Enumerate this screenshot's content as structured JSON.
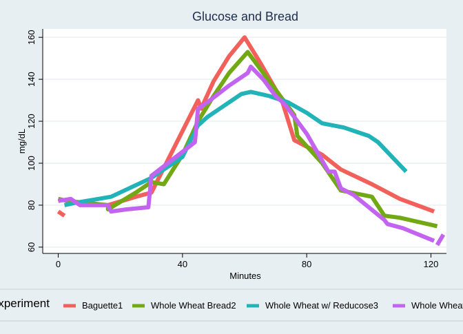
{
  "chart_data": {
    "type": "line",
    "title": "Glucose and Bread",
    "xlabel": "Minutes",
    "ylabel": "mg/dL",
    "xlim": [
      -5,
      125
    ],
    "ylim": [
      57,
      164
    ],
    "xticks": [
      0,
      40,
      80,
      120
    ],
    "yticks": [
      60,
      80,
      100,
      120,
      140,
      160
    ],
    "grid": "horizontal",
    "legend": {
      "title": "Experiment",
      "placement": "bottom",
      "entries": [
        "Baguette1",
        "Whole Wheat Bread2",
        "Whole Wheat w/ Reducose3",
        "Whole Wheat"
      ]
    },
    "series": [
      {
        "name": "Baguette1",
        "color": "#f1605a",
        "segments": [
          [
            [
              0,
              77
            ],
            [
              2,
              75
            ]
          ],
          [
            [
              16,
              80
            ],
            [
              25,
              84
            ],
            [
              30,
              86
            ],
            [
              45,
              130
            ],
            [
              46,
              126
            ],
            [
              50,
              139
            ],
            [
              55,
              151
            ],
            [
              60,
              160
            ],
            [
              65,
              148
            ],
            [
              72,
              130
            ],
            [
              76,
              111
            ],
            [
              85,
              104
            ],
            [
              91,
              97
            ],
            [
              101,
              90
            ],
            [
              110,
              83
            ],
            [
              121,
              77
            ]
          ]
        ]
      },
      {
        "name": "Whole Wheat Bread2",
        "color": "#71a813",
        "segments": [
          [
            [
              0,
              83
            ],
            [
              3,
              82
            ],
            [
              16,
              80
            ],
            [
              16,
              78
            ],
            [
              25,
              86
            ],
            [
              30,
              91
            ],
            [
              34,
              90
            ],
            [
              40,
              104
            ],
            [
              45,
              120
            ],
            [
              50,
              132
            ],
            [
              55,
              143
            ],
            [
              61,
              153
            ],
            [
              65,
              145
            ],
            [
              70,
              135
            ],
            [
              76,
              123
            ],
            [
              77,
              113
            ],
            [
              85,
              100
            ],
            [
              91,
              87
            ],
            [
              101,
              84
            ],
            [
              105,
              75
            ],
            [
              110,
              74
            ],
            [
              122,
              70
            ]
          ]
        ]
      },
      {
        "name": "Whole Wheat w/ Reducose3",
        "color": "#22b3b8",
        "segments": [
          [
            [
              2,
              80
            ],
            [
              5,
              81
            ],
            [
              17,
              84
            ],
            [
              30,
              93
            ],
            [
              40,
              103
            ],
            [
              45,
              118
            ],
            [
              48,
              122
            ],
            [
              52,
              126
            ],
            [
              59,
              133
            ],
            [
              62,
              134
            ],
            [
              68,
              132
            ],
            [
              74,
              129
            ],
            [
              80,
              124
            ],
            [
              85,
              119
            ],
            [
              92,
              117
            ],
            [
              100,
              113
            ],
            [
              103,
              110
            ],
            [
              112,
              96
            ]
          ]
        ]
      },
      {
        "name": "Whole Wheat",
        "color": "#c264f0",
        "segments": [
          [
            [
              0,
              82
            ],
            [
              4,
              83
            ],
            [
              7,
              80
            ],
            [
              16,
              80
            ],
            [
              17,
              77
            ],
            [
              22,
              78
            ],
            [
              29,
              79
            ],
            [
              30,
              94
            ],
            [
              44,
              110
            ],
            [
              45,
              126
            ],
            [
              48,
              129
            ],
            [
              55,
              137
            ],
            [
              61,
              143
            ],
            [
              62,
              146
            ],
            [
              66,
              140
            ],
            [
              70,
              132
            ],
            [
              73,
              128
            ],
            [
              80,
              114
            ],
            [
              87,
              96
            ],
            [
              89,
              96
            ],
            [
              91,
              88
            ],
            [
              95,
              85
            ],
            [
              105,
              73
            ],
            [
              106,
              71
            ],
            [
              111,
              69
            ],
            [
              121,
              63
            ]
          ],
          [
            [
              122,
              61
            ],
            [
              124,
              66
            ]
          ]
        ]
      }
    ]
  }
}
